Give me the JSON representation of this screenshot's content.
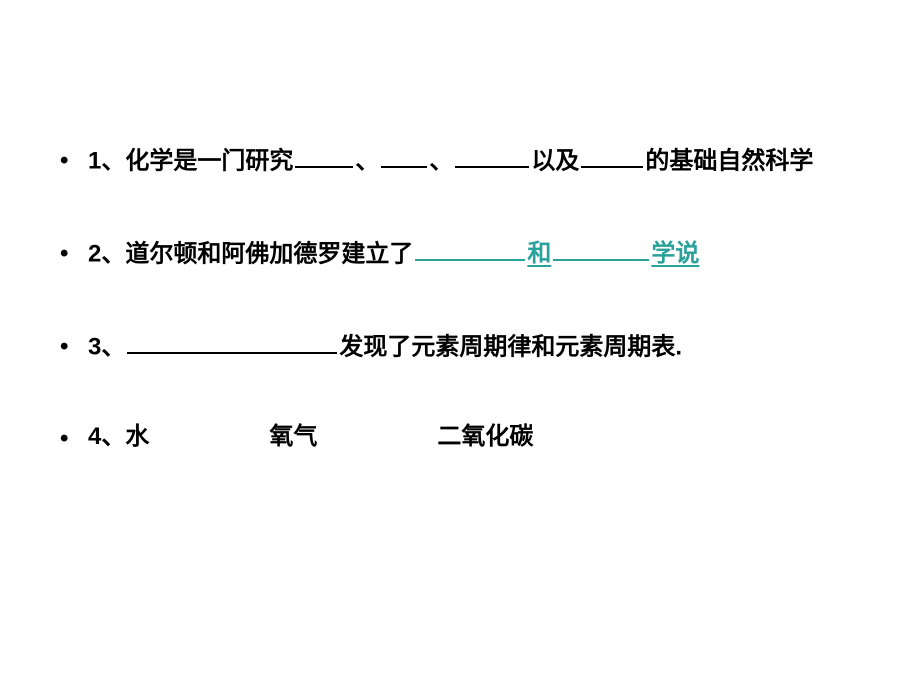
{
  "colors": {
    "text": "#000000",
    "accent": "#2aa19a",
    "background": "#ffffff"
  },
  "typography": {
    "font_family": "Microsoft YaHei / SimHei",
    "font_size_pt": 18,
    "font_weight": 700,
    "line_height": 1.6
  },
  "bullet_char": "•",
  "items": [
    {
      "number": "1、",
      "part1": "化学是一门研究",
      "sep1": "、",
      "sep2": "、",
      "part2": "以及",
      "part3": "的基础自然科学"
    },
    {
      "number": "2、",
      "part1": "道尔顿和阿佛加德罗建立了",
      "teal_mid": "和",
      "teal_tail": "学说"
    },
    {
      "number": "3、",
      "part1": "发现了元素周期律和元素周期表."
    },
    {
      "number": "4、",
      "w1": "水",
      "w2": "氧气",
      "w3": "二氧化碳"
    }
  ]
}
